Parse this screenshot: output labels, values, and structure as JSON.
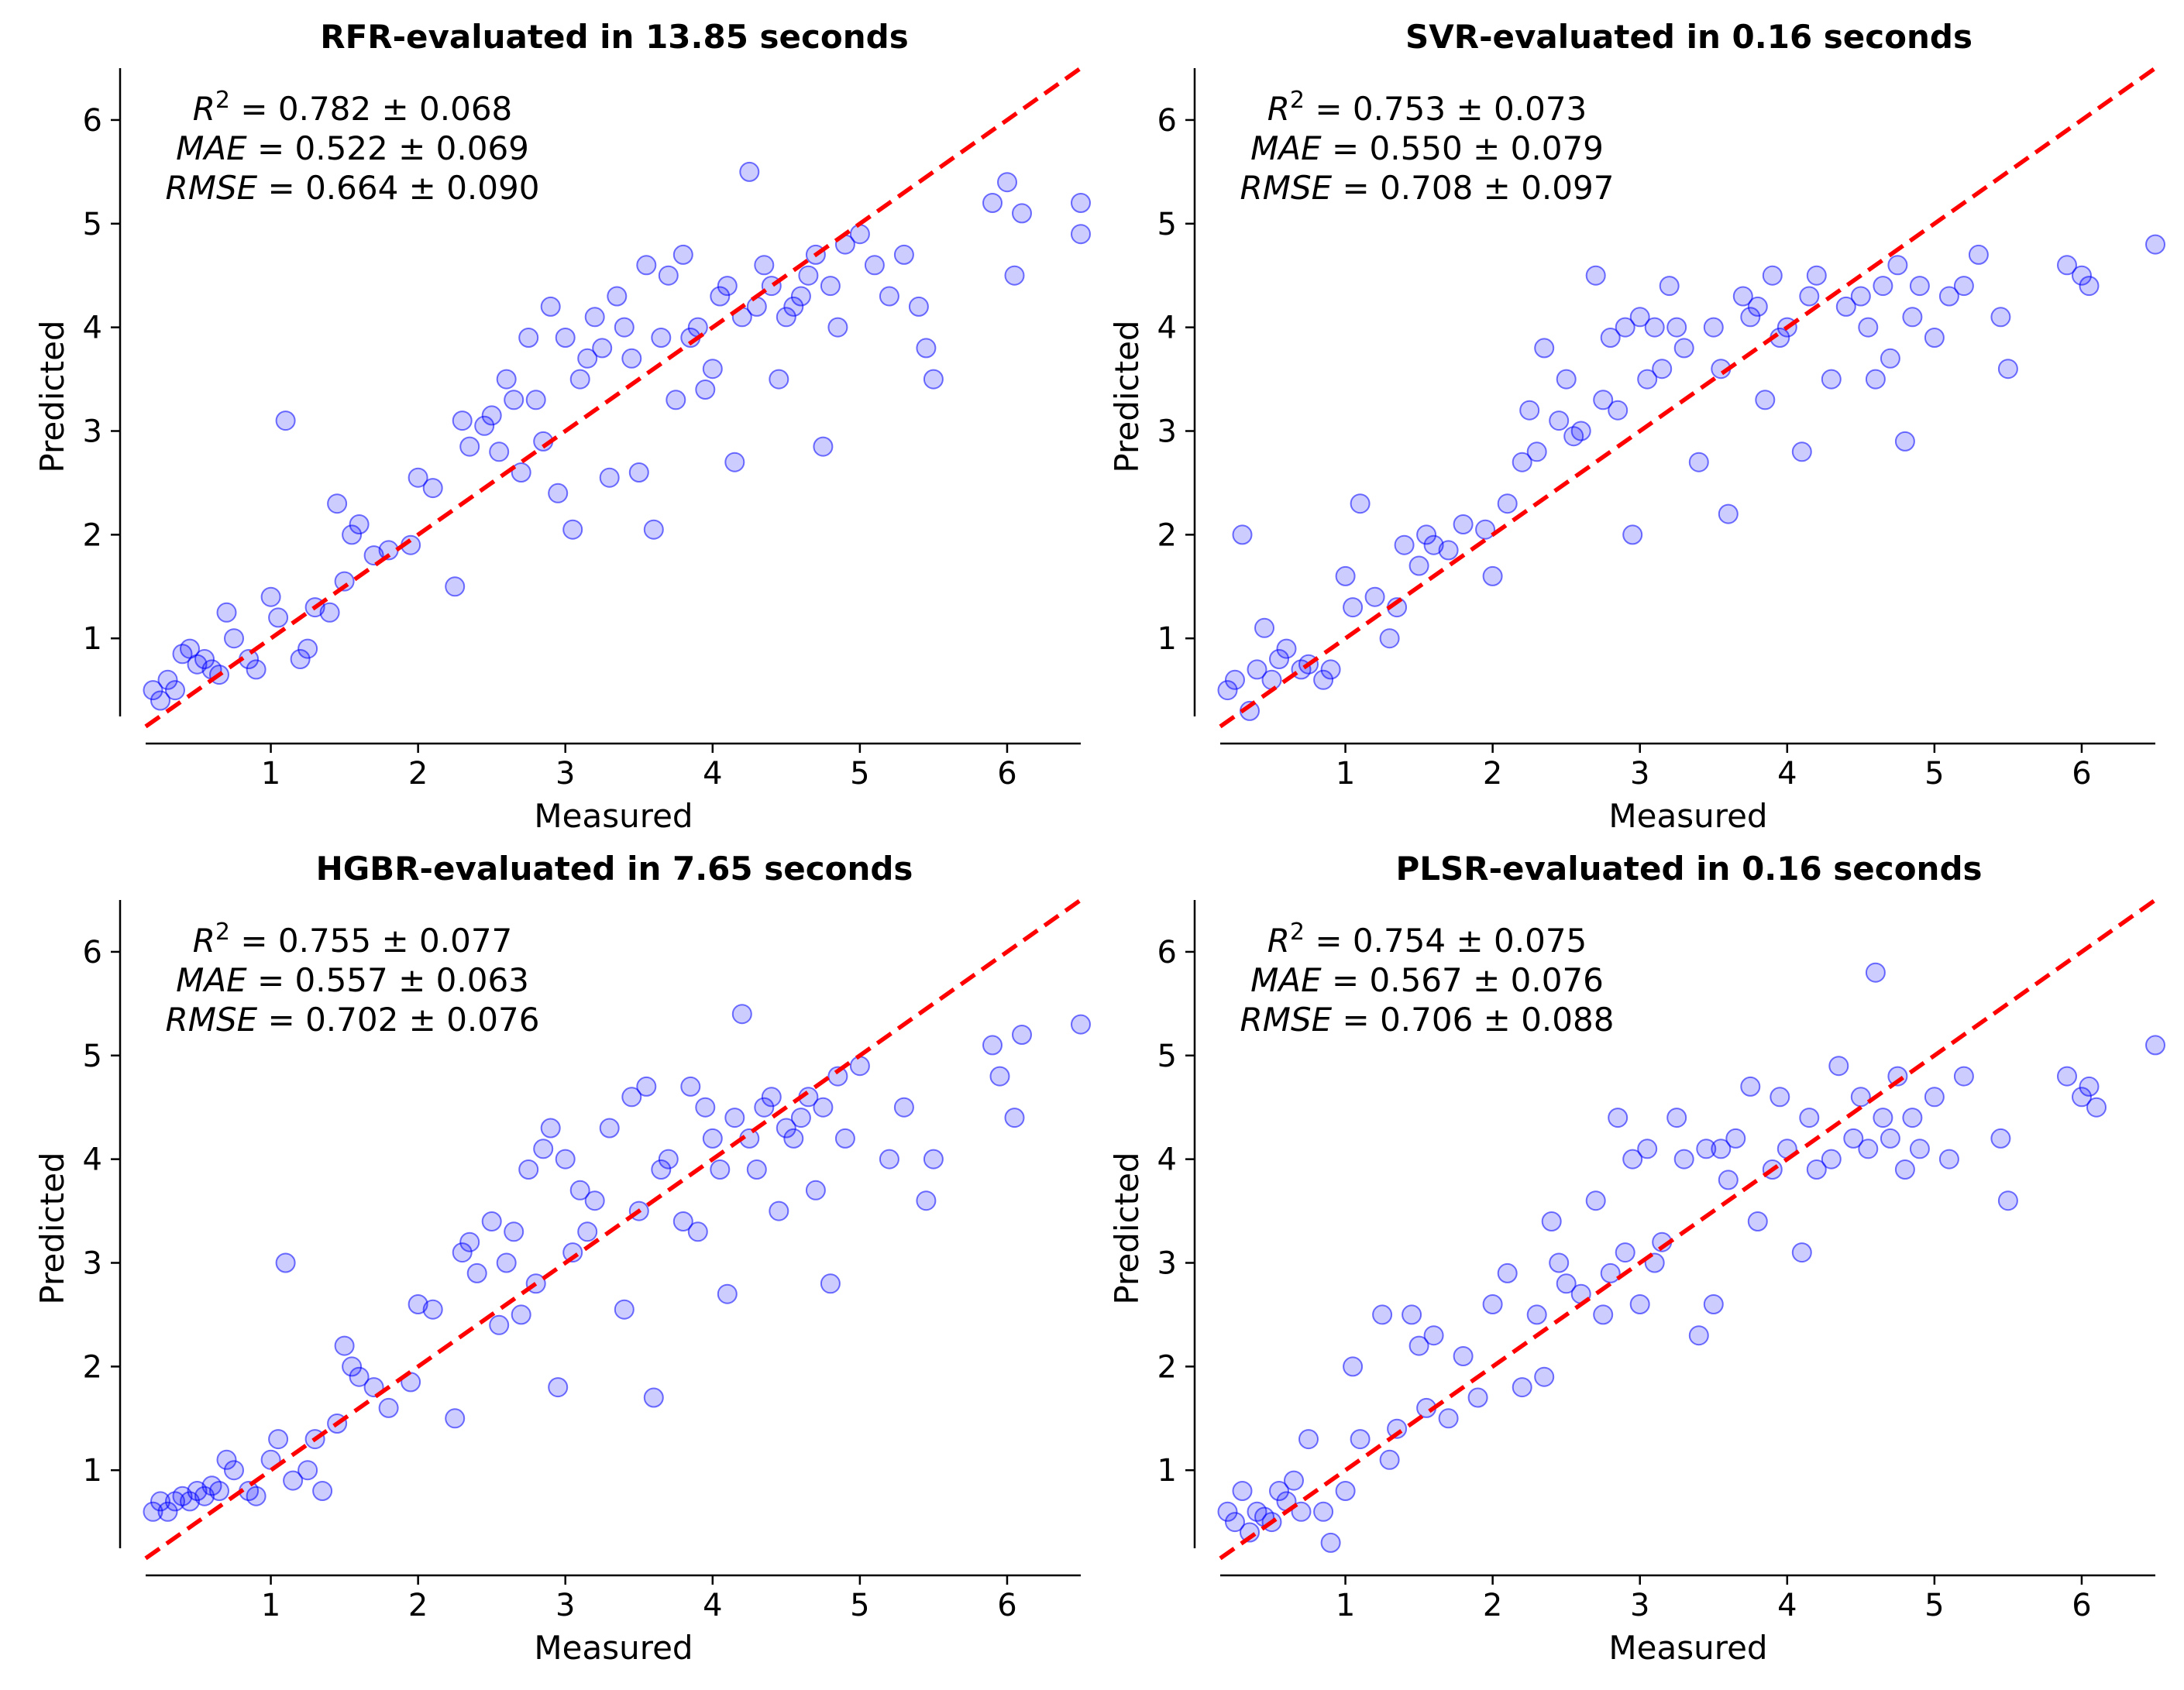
{
  "figure": {
    "xlabel": "Measured",
    "ylabel": "Predicted",
    "xlim": [
      0.15,
      6.5
    ],
    "ylim": [
      0.15,
      6.5
    ],
    "xticks": [
      1,
      2,
      3,
      4,
      5,
      6
    ],
    "yticks": [
      1,
      2,
      3,
      4,
      5,
      6
    ],
    "point_color": "#0000ff",
    "line_color": "#ff0000"
  },
  "panels": [
    {
      "title": "RFR-evaluated in 13.85 seconds",
      "stats": [
        {
          "name": "R",
          "sup": "2",
          "value": " = 0.782 ± 0.068"
        },
        {
          "name": "MAE",
          "sup": "",
          "value": " = 0.522 ± 0.069"
        },
        {
          "name": "RMSE",
          "sup": "",
          "value": " = 0.664 ± 0.090"
        }
      ]
    },
    {
      "title": "SVR-evaluated in 0.16 seconds",
      "stats": [
        {
          "name": "R",
          "sup": "2",
          "value": " = 0.753 ± 0.073"
        },
        {
          "name": "MAE",
          "sup": "",
          "value": " = 0.550 ± 0.079"
        },
        {
          "name": "RMSE",
          "sup": "",
          "value": " = 0.708 ± 0.097"
        }
      ]
    },
    {
      "title": "HGBR-evaluated in 7.65 seconds",
      "stats": [
        {
          "name": "R",
          "sup": "2",
          "value": " = 0.755 ± 0.077"
        },
        {
          "name": "MAE",
          "sup": "",
          "value": " = 0.557 ± 0.063"
        },
        {
          "name": "RMSE",
          "sup": "",
          "value": " = 0.702 ± 0.076"
        }
      ]
    },
    {
      "title": "PLSR-evaluated in 0.16 seconds",
      "stats": [
        {
          "name": "R",
          "sup": "2",
          "value": " = 0.754 ± 0.075"
        },
        {
          "name": "MAE",
          "sup": "",
          "value": " = 0.567 ± 0.076"
        },
        {
          "name": "RMSE",
          "sup": "",
          "value": " = 0.706 ± 0.088"
        }
      ]
    }
  ],
  "chart_data": [
    {
      "type": "scatter",
      "title": "RFR-evaluated in 13.85 seconds",
      "xlabel": "Measured",
      "ylabel": "Predicted",
      "xlim": [
        0.15,
        6.5
      ],
      "ylim": [
        0.15,
        6.5
      ],
      "reference_line": {
        "style": "dashed",
        "color": "#ff0000",
        "from": [
          0.15,
          0.15
        ],
        "to": [
          6.5,
          6.5
        ]
      },
      "x": [
        0.2,
        0.25,
        0.3,
        0.35,
        0.4,
        0.45,
        0.5,
        0.55,
        0.6,
        0.65,
        0.7,
        0.75,
        0.85,
        0.9,
        1.0,
        1.05,
        1.1,
        1.2,
        1.25,
        1.3,
        1.4,
        1.45,
        1.5,
        1.55,
        1.6,
        1.7,
        1.8,
        1.95,
        2.0,
        2.1,
        2.25,
        2.3,
        2.35,
        2.45,
        2.5,
        2.55,
        2.6,
        2.65,
        2.7,
        2.75,
        2.8,
        2.85,
        2.9,
        2.95,
        3.0,
        3.05,
        3.1,
        3.15,
        3.2,
        3.25,
        3.3,
        3.35,
        3.4,
        3.45,
        3.5,
        3.55,
        3.6,
        3.65,
        3.7,
        3.75,
        3.8,
        3.85,
        3.9,
        3.95,
        4.0,
        4.05,
        4.1,
        4.15,
        4.2,
        4.25,
        4.3,
        4.35,
        4.4,
        4.45,
        4.5,
        4.55,
        4.6,
        4.65,
        4.7,
        4.75,
        4.8,
        4.85,
        4.9,
        5.0,
        5.1,
        5.2,
        5.3,
        5.4,
        5.45,
        5.5,
        5.9,
        6.0,
        6.05,
        6.1,
        6.5,
        6.5
      ],
      "y": [
        0.5,
        0.4,
        0.6,
        0.5,
        0.85,
        0.9,
        0.75,
        0.8,
        0.7,
        0.65,
        1.25,
        1.0,
        0.8,
        0.7,
        1.4,
        1.2,
        3.1,
        0.8,
        0.9,
        1.3,
        1.25,
        2.3,
        1.55,
        2.0,
        2.1,
        1.8,
        1.85,
        1.9,
        2.55,
        2.45,
        1.5,
        3.1,
        2.85,
        3.05,
        3.15,
        2.8,
        3.5,
        3.3,
        2.6,
        3.9,
        3.3,
        2.9,
        4.2,
        2.4,
        3.9,
        2.05,
        3.5,
        3.7,
        4.1,
        3.8,
        2.55,
        4.3,
        4.0,
        3.7,
        2.6,
        4.6,
        2.05,
        3.9,
        4.5,
        3.3,
        4.7,
        3.9,
        4.0,
        3.4,
        3.6,
        4.3,
        4.4,
        2.7,
        4.1,
        5.5,
        4.2,
        4.6,
        4.4,
        3.5,
        4.1,
        4.2,
        4.3,
        4.5,
        4.7,
        2.85,
        4.4,
        4.0,
        4.8,
        4.9,
        4.6,
        4.3,
        4.7,
        4.2,
        3.8,
        3.5,
        5.2,
        5.4,
        4.5,
        5.1,
        5.2,
        4.9
      ]
    },
    {
      "type": "scatter",
      "title": "SVR-evaluated in 0.16 seconds",
      "xlabel": "Measured",
      "ylabel": "Predicted",
      "xlim": [
        0.15,
        6.5
      ],
      "ylim": [
        0.15,
        6.5
      ],
      "reference_line": {
        "style": "dashed",
        "color": "#ff0000",
        "from": [
          0.15,
          0.15
        ],
        "to": [
          6.5,
          6.5
        ]
      },
      "x": [
        0.2,
        0.25,
        0.3,
        0.35,
        0.4,
        0.45,
        0.5,
        0.55,
        0.6,
        0.7,
        0.75,
        0.85,
        0.9,
        1.0,
        1.05,
        1.1,
        1.2,
        1.3,
        1.35,
        1.4,
        1.5,
        1.55,
        1.6,
        1.7,
        1.8,
        1.95,
        2.0,
        2.1,
        2.2,
        2.25,
        2.3,
        2.35,
        2.45,
        2.5,
        2.55,
        2.6,
        2.7,
        2.75,
        2.8,
        2.85,
        2.9,
        2.95,
        3.0,
        3.05,
        3.1,
        3.15,
        3.2,
        3.25,
        3.3,
        3.4,
        3.5,
        3.55,
        3.6,
        3.7,
        3.75,
        3.8,
        3.85,
        3.9,
        3.95,
        4.0,
        4.1,
        4.15,
        4.2,
        4.3,
        4.4,
        4.5,
        4.55,
        4.6,
        4.65,
        4.7,
        4.75,
        4.8,
        4.85,
        4.9,
        5.0,
        5.1,
        5.2,
        5.3,
        5.45,
        5.5,
        5.9,
        6.0,
        6.05,
        6.5
      ],
      "y": [
        0.5,
        0.6,
        2.0,
        0.3,
        0.7,
        1.1,
        0.6,
        0.8,
        0.9,
        0.7,
        0.75,
        0.6,
        0.7,
        1.6,
        1.3,
        2.3,
        1.4,
        1.0,
        1.3,
        1.9,
        1.7,
        2.0,
        1.9,
        1.85,
        2.1,
        2.05,
        1.6,
        2.3,
        2.7,
        3.2,
        2.8,
        3.8,
        3.1,
        3.5,
        2.95,
        3.0,
        4.5,
        3.3,
        3.9,
        3.2,
        4.0,
        2.0,
        4.1,
        3.5,
        4.0,
        3.6,
        4.4,
        4.0,
        3.8,
        2.7,
        4.0,
        3.6,
        2.2,
        4.3,
        4.1,
        4.2,
        3.3,
        4.5,
        3.9,
        4.0,
        2.8,
        4.3,
        4.5,
        3.5,
        4.2,
        4.3,
        4.0,
        3.5,
        4.4,
        3.7,
        4.6,
        2.9,
        4.1,
        4.4,
        3.9,
        4.3,
        4.4,
        4.7,
        4.1,
        3.6,
        4.6,
        4.5,
        4.4,
        4.8
      ]
    },
    {
      "type": "scatter",
      "title": "HGBR-evaluated in 7.65 seconds",
      "xlabel": "Measured",
      "ylabel": "Predicted",
      "xlim": [
        0.15,
        6.5
      ],
      "ylim": [
        0.15,
        6.5
      ],
      "reference_line": {
        "style": "dashed",
        "color": "#ff0000",
        "from": [
          0.15,
          0.15
        ],
        "to": [
          6.5,
          6.5
        ]
      },
      "x": [
        0.2,
        0.25,
        0.3,
        0.35,
        0.4,
        0.45,
        0.5,
        0.55,
        0.6,
        0.65,
        0.7,
        0.75,
        0.85,
        0.9,
        1.0,
        1.05,
        1.1,
        1.15,
        1.25,
        1.3,
        1.35,
        1.45,
        1.5,
        1.55,
        1.6,
        1.7,
        1.8,
        1.95,
        2.0,
        2.1,
        2.25,
        2.3,
        2.35,
        2.4,
        2.5,
        2.55,
        2.6,
        2.65,
        2.7,
        2.75,
        2.8,
        2.85,
        2.9,
        2.95,
        3.0,
        3.05,
        3.1,
        3.15,
        3.2,
        3.3,
        3.4,
        3.45,
        3.5,
        3.55,
        3.6,
        3.65,
        3.7,
        3.8,
        3.85,
        3.9,
        3.95,
        4.0,
        4.05,
        4.1,
        4.15,
        4.2,
        4.25,
        4.3,
        4.35,
        4.4,
        4.45,
        4.5,
        4.55,
        4.6,
        4.65,
        4.7,
        4.75,
        4.8,
        4.85,
        4.9,
        5.0,
        5.2,
        5.3,
        5.45,
        5.5,
        5.9,
        5.95,
        6.05,
        6.1,
        6.5
      ],
      "y": [
        0.6,
        0.7,
        0.6,
        0.7,
        0.75,
        0.7,
        0.8,
        0.75,
        0.85,
        0.8,
        1.1,
        1.0,
        0.8,
        0.75,
        1.1,
        1.3,
        3.0,
        0.9,
        1.0,
        1.3,
        0.8,
        1.45,
        2.2,
        2.0,
        1.9,
        1.8,
        1.6,
        1.85,
        2.6,
        2.55,
        1.5,
        3.1,
        3.2,
        2.9,
        3.4,
        2.4,
        3.0,
        3.3,
        2.5,
        3.9,
        2.8,
        4.1,
        4.3,
        1.8,
        4.0,
        3.1,
        3.7,
        3.3,
        3.6,
        4.3,
        2.55,
        4.6,
        3.5,
        4.7,
        1.7,
        3.9,
        4.0,
        3.4,
        4.7,
        3.3,
        4.5,
        4.2,
        3.9,
        2.7,
        4.4,
        5.4,
        4.2,
        3.9,
        4.5,
        4.6,
        3.5,
        4.3,
        4.2,
        4.4,
        4.6,
        3.7,
        4.5,
        2.8,
        4.8,
        4.2,
        4.9,
        4.0,
        4.5,
        3.6,
        4.0,
        5.1,
        4.8,
        4.4,
        5.2,
        5.3
      ]
    },
    {
      "type": "scatter",
      "title": "PLSR-evaluated in 0.16 seconds",
      "xlabel": "Measured",
      "ylabel": "Predicted",
      "xlim": [
        0.15,
        6.5
      ],
      "ylim": [
        0.15,
        6.5
      ],
      "reference_line": {
        "style": "dashed",
        "color": "#ff0000",
        "from": [
          0.15,
          0.15
        ],
        "to": [
          6.5,
          6.5
        ]
      },
      "x": [
        0.2,
        0.25,
        0.3,
        0.35,
        0.4,
        0.45,
        0.5,
        0.55,
        0.6,
        0.65,
        0.7,
        0.75,
        0.85,
        0.9,
        1.0,
        1.05,
        1.1,
        1.25,
        1.3,
        1.35,
        1.45,
        1.5,
        1.55,
        1.6,
        1.7,
        1.8,
        1.9,
        2.0,
        2.1,
        2.2,
        2.3,
        2.35,
        2.4,
        2.45,
        2.5,
        2.6,
        2.7,
        2.75,
        2.8,
        2.85,
        2.9,
        2.95,
        3.0,
        3.05,
        3.1,
        3.15,
        3.25,
        3.3,
        3.4,
        3.45,
        3.5,
        3.55,
        3.6,
        3.65,
        3.75,
        3.8,
        3.9,
        3.95,
        4.0,
        4.1,
        4.15,
        4.2,
        4.3,
        4.35,
        4.45,
        4.5,
        4.55,
        4.6,
        4.65,
        4.7,
        4.75,
        4.8,
        4.85,
        4.9,
        5.0,
        5.1,
        5.2,
        5.45,
        5.5,
        5.9,
        6.0,
        6.05,
        6.1,
        6.5
      ],
      "y": [
        0.6,
        0.5,
        0.8,
        0.4,
        0.6,
        0.55,
        0.5,
        0.8,
        0.7,
        0.9,
        0.6,
        1.3,
        0.6,
        0.3,
        0.8,
        2.0,
        1.3,
        2.5,
        1.1,
        1.4,
        2.5,
        2.2,
        1.6,
        2.3,
        1.5,
        2.1,
        1.7,
        2.6,
        2.9,
        1.8,
        2.5,
        1.9,
        3.4,
        3.0,
        2.8,
        2.7,
        3.6,
        2.5,
        2.9,
        4.4,
        3.1,
        4.0,
        2.6,
        4.1,
        3.0,
        3.2,
        4.4,
        4.0,
        2.3,
        4.1,
        2.6,
        4.1,
        3.8,
        4.2,
        4.7,
        3.4,
        3.9,
        4.6,
        4.1,
        3.1,
        4.4,
        3.9,
        4.0,
        4.9,
        4.2,
        4.6,
        4.1,
        5.8,
        4.4,
        4.2,
        4.8,
        3.9,
        4.4,
        4.1,
        4.6,
        4.0,
        4.8,
        4.2,
        3.6,
        4.8,
        4.6,
        4.7,
        4.5,
        5.1
      ]
    }
  ]
}
